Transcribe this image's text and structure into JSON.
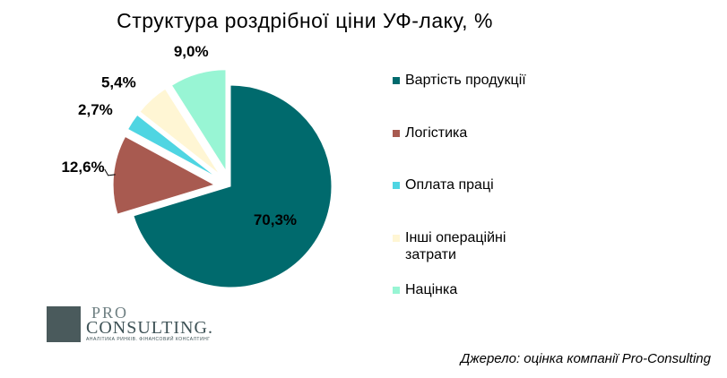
{
  "chart_data": {
    "type": "pie",
    "title": "Структура роздрібної ціни УФ-лаку, %",
    "categories": [
      "Вартість продукції",
      "Логістика",
      "Оплата праці",
      "Інші операційні затрати",
      "Націнка"
    ],
    "values": [
      70.3,
      12.6,
      2.7,
      5.4,
      9.0
    ],
    "data_labels": [
      "70,3%",
      "12,6%",
      "2,7%",
      "5,4%",
      "9,0%"
    ],
    "colors": [
      "#006a6d",
      "#a85a50",
      "#4fd5e2",
      "#fff6d4",
      "#98f5d4"
    ],
    "exploded": [
      false,
      true,
      true,
      true,
      true
    ],
    "legend_position": "right"
  },
  "source": "Джерело: оцінка компанії Pro-Consulting",
  "logo": {
    "pro": "PRO",
    "consulting": "CONSULTING.",
    "tagline": "АНАЛІТИКА РИНКІВ. ФІНАНСОВИЙ КОНСАЛТИНГ"
  }
}
